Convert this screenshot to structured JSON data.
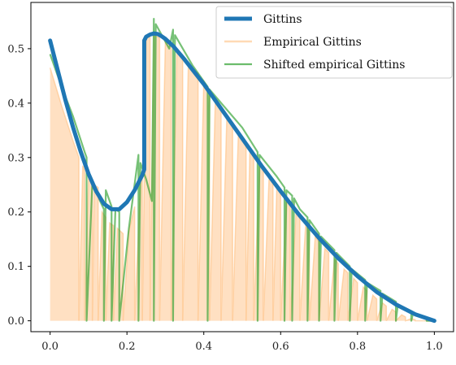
{
  "chart_data": {
    "type": "line",
    "title": "",
    "xlabel": "",
    "ylabel": "",
    "xlim": [
      -0.05,
      1.05
    ],
    "ylim": [
      -0.02,
      0.585
    ],
    "grid": false,
    "legend_position": "top-right",
    "x_ticks": [
      "0.0",
      "0.2",
      "0.4",
      "0.6",
      "0.8",
      "1.0"
    ],
    "y_ticks": [
      "0.0",
      "0.1",
      "0.2",
      "0.3",
      "0.4",
      "0.5"
    ],
    "series": [
      {
        "name": "Gittins",
        "color": "#1f77b4",
        "style": "line",
        "x": [
          0.0,
          0.02,
          0.04,
          0.06,
          0.08,
          0.1,
          0.12,
          0.14,
          0.16,
          0.18,
          0.2,
          0.22,
          0.24,
          0.245,
          0.245,
          0.25,
          0.26,
          0.27,
          0.28,
          0.29,
          0.3,
          0.32,
          0.35,
          0.4,
          0.45,
          0.5,
          0.55,
          0.6,
          0.65,
          0.7,
          0.75,
          0.8,
          0.85,
          0.9,
          0.95,
          1.0
        ],
        "y": [
          0.515,
          0.46,
          0.405,
          0.355,
          0.31,
          0.27,
          0.238,
          0.215,
          0.205,
          0.205,
          0.218,
          0.24,
          0.268,
          0.278,
          0.515,
          0.522,
          0.526,
          0.528,
          0.527,
          0.523,
          0.518,
          0.505,
          0.48,
          0.435,
          0.385,
          0.335,
          0.285,
          0.238,
          0.193,
          0.152,
          0.115,
          0.082,
          0.053,
          0.03,
          0.012,
          0.0
        ]
      },
      {
        "name": "Empirical Gittins",
        "color": "#ffbb78",
        "style": "fill",
        "x": [
          0.0,
          0.03,
          0.06,
          0.075,
          0.075,
          0.085,
          0.09,
          0.09,
          0.1,
          0.11,
          0.11,
          0.115,
          0.125,
          0.125,
          0.135,
          0.145,
          0.145,
          0.155,
          0.165,
          0.165,
          0.175,
          0.19,
          0.19,
          0.205,
          0.22,
          0.22,
          0.235,
          0.24,
          0.24,
          0.25,
          0.26,
          0.26,
          0.27,
          0.285,
          0.285,
          0.3,
          0.315,
          0.315,
          0.33,
          0.345,
          0.345,
          0.36,
          0.375,
          0.385,
          0.385,
          0.4,
          0.415,
          0.415,
          0.43,
          0.445,
          0.445,
          0.46,
          0.475,
          0.475,
          0.49,
          0.505,
          0.51,
          0.51,
          0.52,
          0.53,
          0.53,
          0.545,
          0.555,
          0.555,
          0.57,
          0.58,
          0.58,
          0.59,
          0.6,
          0.6,
          0.615,
          0.625,
          0.625,
          0.64,
          0.65,
          0.65,
          0.665,
          0.675,
          0.675,
          0.69,
          0.7,
          0.7,
          0.715,
          0.725,
          0.725,
          0.74,
          0.75,
          0.75,
          0.765,
          0.775,
          0.775,
          0.79,
          0.8,
          0.8,
          0.815,
          0.825,
          0.825,
          0.84,
          0.85,
          0.85,
          0.865,
          0.875,
          0.875,
          0.89,
          0.9,
          0.9,
          0.915,
          0.925,
          0.925,
          0.94,
          0.95,
          0.95,
          0.965,
          0.975,
          0.975,
          0.99,
          1.0
        ],
        "y": [
          0.465,
          0.395,
          0.33,
          0.3,
          0.0,
          0.285,
          0.275,
          0.0,
          0.265,
          0.255,
          0.0,
          0.25,
          0.245,
          0.0,
          0.2,
          0.19,
          0.0,
          0.18,
          0.175,
          0.0,
          0.17,
          0.16,
          0.0,
          0.165,
          0.21,
          0.0,
          0.25,
          0.27,
          0.0,
          0.52,
          0.525,
          0.0,
          0.525,
          0.52,
          0.0,
          0.515,
          0.505,
          0.0,
          0.495,
          0.485,
          0.0,
          0.475,
          0.46,
          0.455,
          0.0,
          0.44,
          0.425,
          0.0,
          0.405,
          0.39,
          0.0,
          0.375,
          0.36,
          0.0,
          0.345,
          0.33,
          0.325,
          0.0,
          0.315,
          0.305,
          0.0,
          0.29,
          0.28,
          0.0,
          0.265,
          0.255,
          0.0,
          0.245,
          0.235,
          0.0,
          0.22,
          0.21,
          0.0,
          0.2,
          0.19,
          0.0,
          0.175,
          0.165,
          0.0,
          0.155,
          0.145,
          0.0,
          0.133,
          0.125,
          0.0,
          0.113,
          0.105,
          0.0,
          0.095,
          0.088,
          0.0,
          0.078,
          0.07,
          0.0,
          0.062,
          0.055,
          0.0,
          0.047,
          0.04,
          0.0,
          0.033,
          0.027,
          0.0,
          0.021,
          0.016,
          0.0,
          0.011,
          0.007,
          0.0,
          0.004,
          0.002,
          0.0,
          0.0,
          0.0,
          0.0,
          0.0,
          0.0
        ]
      },
      {
        "name": "Shifted empirical Gittins",
        "color": "#2ca02c",
        "style": "line",
        "x": [
          0.0,
          0.03,
          0.06,
          0.09,
          0.095,
          0.095,
          0.11,
          0.125,
          0.13,
          0.14,
          0.14,
          0.145,
          0.16,
          0.16,
          0.17,
          0.18,
          0.18,
          0.205,
          0.23,
          0.23,
          0.235,
          0.25,
          0.265,
          0.27,
          0.27,
          0.275,
          0.31,
          0.32,
          0.32,
          0.325,
          0.37,
          0.41,
          0.41,
          0.415,
          0.5,
          0.54,
          0.54,
          0.545,
          0.59,
          0.61,
          0.61,
          0.615,
          0.63,
          0.63,
          0.635,
          0.65,
          0.67,
          0.67,
          0.675,
          0.7,
          0.7,
          0.705,
          0.74,
          0.74,
          0.745,
          0.78,
          0.78,
          0.785,
          0.82,
          0.82,
          0.825,
          0.86,
          0.86,
          0.865,
          0.9,
          0.9,
          0.905,
          0.94,
          0.94,
          0.945,
          0.98,
          0.98,
          1.0
        ],
        "y": [
          0.49,
          0.43,
          0.375,
          0.31,
          0.3,
          0.0,
          0.255,
          0.23,
          0.22,
          0.205,
          0.0,
          0.24,
          0.21,
          0.0,
          0.205,
          0.2,
          0.0,
          0.17,
          0.305,
          0.0,
          0.29,
          0.26,
          0.22,
          0.555,
          0.0,
          0.545,
          0.5,
          0.535,
          0.0,
          0.525,
          0.47,
          0.43,
          0.0,
          0.425,
          0.355,
          0.31,
          0.0,
          0.305,
          0.265,
          0.245,
          0.0,
          0.24,
          0.23,
          0.0,
          0.225,
          0.205,
          0.19,
          0.0,
          0.185,
          0.16,
          0.0,
          0.155,
          0.13,
          0.0,
          0.125,
          0.1,
          0.0,
          0.095,
          0.075,
          0.0,
          0.07,
          0.055,
          0.0,
          0.05,
          0.035,
          0.0,
          0.03,
          0.018,
          0.0,
          0.015,
          0.005,
          0.0,
          0.0
        ]
      }
    ]
  }
}
